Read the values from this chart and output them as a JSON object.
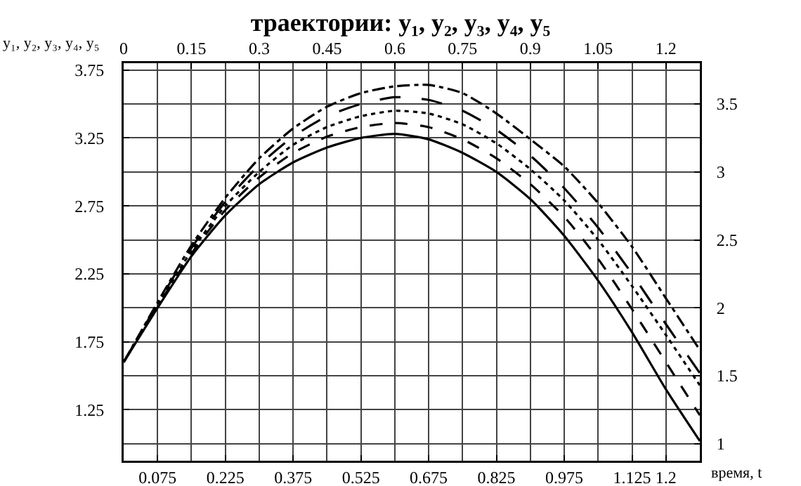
{
  "chart_data": {
    "type": "line",
    "title": "траектории: y₁, y₂, y₃, y₄, y₅",
    "ylabel": "y₁, y₂, y₃, y₄, y₅",
    "xlabel": "время, t",
    "x": [
      0,
      0.075,
      0.15,
      0.225,
      0.3,
      0.375,
      0.45,
      0.525,
      0.6,
      0.675,
      0.75,
      0.825,
      0.9,
      0.975,
      1.05,
      1.125,
      1.2,
      1.275
    ],
    "series": [
      {
        "color": "#000000",
        "line_style": "solid",
        "values": [
          1.6,
          2.0,
          2.38,
          2.68,
          2.91,
          3.07,
          3.18,
          3.25,
          3.28,
          3.24,
          3.14,
          3.0,
          2.8,
          2.53,
          2.2,
          1.82,
          1.4,
          1.02
        ]
      },
      {
        "color": "#000000",
        "line_style": "dashed",
        "values": [
          1.6,
          2.01,
          2.4,
          2.72,
          2.96,
          3.14,
          3.26,
          3.33,
          3.36,
          3.33,
          3.24,
          3.1,
          2.91,
          2.67,
          2.36,
          1.99,
          1.6,
          1.21
        ]
      },
      {
        "color": "#000000",
        "line_style": "dotted",
        "values": [
          1.6,
          2.02,
          2.42,
          2.75,
          3.0,
          3.2,
          3.33,
          3.41,
          3.45,
          3.43,
          3.35,
          3.21,
          3.02,
          2.79,
          2.5,
          2.16,
          1.8,
          1.43
        ]
      },
      {
        "color": "#000000",
        "line_style": "longdash",
        "values": [
          1.6,
          2.03,
          2.44,
          2.78,
          3.05,
          3.26,
          3.41,
          3.5,
          3.55,
          3.53,
          3.45,
          3.31,
          3.12,
          2.88,
          2.59,
          2.25,
          1.88,
          1.52
        ]
      },
      {
        "color": "#000000",
        "line_style": "dashdot",
        "values": [
          1.6,
          2.04,
          2.46,
          2.81,
          3.1,
          3.32,
          3.48,
          3.58,
          3.63,
          3.64,
          3.58,
          3.43,
          3.24,
          3.04,
          2.77,
          2.45,
          2.07,
          1.69
        ]
      }
    ],
    "xlim": [
      0,
      1.275
    ],
    "xticks": [
      0.075,
      0.225,
      0.375,
      0.525,
      0.675,
      0.825,
      0.975,
      1.125,
      1.2
    ],
    "x2lim": [
      0,
      1.275
    ],
    "x2ticks": [
      0,
      0.15,
      0.3,
      0.45,
      0.6,
      0.75,
      0.9,
      1.05,
      1.2
    ],
    "ylim": [
      0.875,
      3.8
    ],
    "yticks": [
      1.25,
      1.75,
      2.25,
      2.75,
      3.25,
      3.75
    ],
    "y2lim": [
      0.875,
      3.8
    ],
    "y2ticks": [
      1,
      1.5,
      2,
      2.5,
      3,
      3.5
    ],
    "grid": true,
    "marker": "none"
  }
}
